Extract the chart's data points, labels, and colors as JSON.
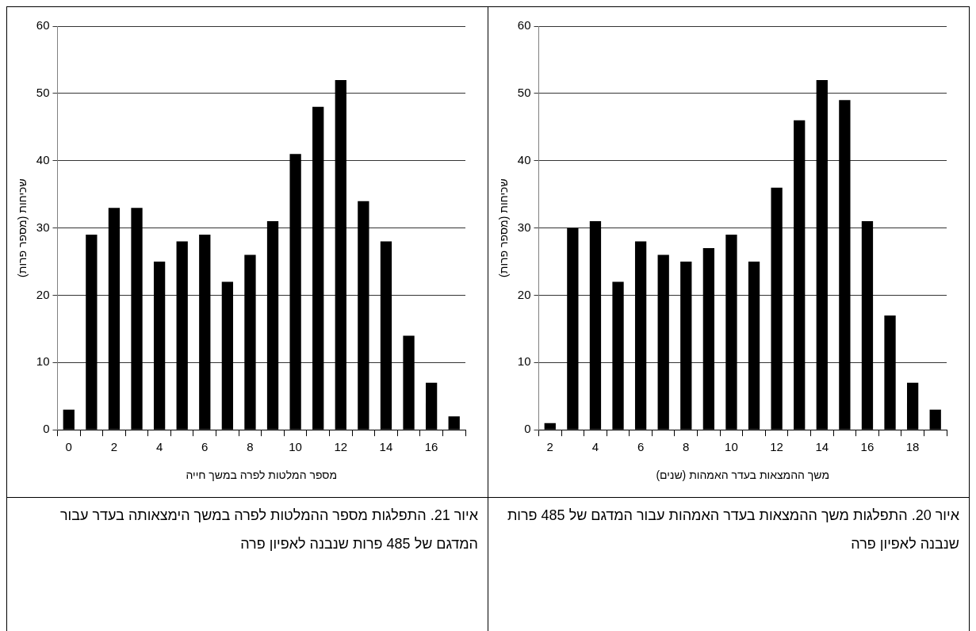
{
  "chart_data": [
    {
      "type": "bar",
      "categories": [
        "2",
        null,
        "4",
        null,
        "6",
        null,
        "8",
        null,
        "10",
        null,
        "12",
        null,
        "14",
        null,
        "16",
        null,
        "18",
        null
      ],
      "values": [
        1,
        30,
        31,
        22,
        28,
        26,
        25,
        27,
        29,
        25,
        36,
        46,
        52,
        49,
        31,
        17,
        7,
        3
      ],
      "color": "#000000",
      "ylim": [
        0,
        60
      ],
      "yticks": [
        0,
        10,
        20,
        30,
        40,
        50,
        60
      ],
      "grid": "y",
      "xlabel": "משך ההמצאות בעדר האמהות (שנים)",
      "ylabel": "שכיחות (מספר פרות)",
      "annotations": [
        "איור 20. התפלגות משך ההמצאות בעדר האמהות עבור המדגם של 485 פרות שנבנה לאפיון פרה"
      ]
    },
    {
      "type": "bar",
      "categories": [
        "0",
        null,
        "2",
        null,
        "4",
        null,
        "6",
        null,
        "8",
        null,
        "10",
        null,
        "12",
        null,
        "14",
        null,
        "16",
        null
      ],
      "values": [
        3,
        29,
        33,
        33,
        25,
        28,
        29,
        22,
        26,
        31,
        41,
        48,
        52,
        34,
        28,
        14,
        7,
        2
      ],
      "color": "#000000",
      "ylim": [
        0,
        60
      ],
      "yticks": [
        0,
        10,
        20,
        30,
        40,
        50,
        60
      ],
      "grid": "y",
      "xlabel": "מספר המלטות לפרה במשך חייה",
      "ylabel": "שכיחות (מספר פרות)",
      "annotations": [
        "איור 21. התפלגות מספר ההמלטות לפרה במשך הימצאותה בעדר עבור המדגם של 485 פרות שנבנה לאפיון פרה"
      ]
    }
  ]
}
